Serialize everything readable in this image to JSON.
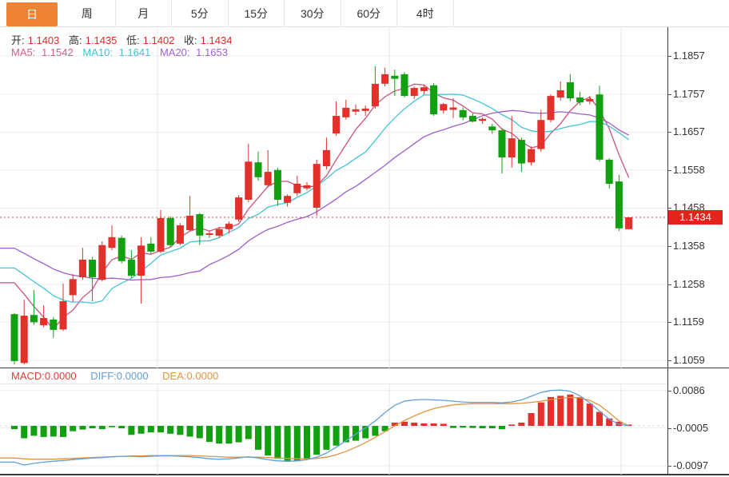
{
  "toolbar": {
    "tabs": [
      {
        "name": "day",
        "label": "日",
        "active": true
      },
      {
        "name": "week",
        "label": "周",
        "active": false
      },
      {
        "name": "month",
        "label": "月",
        "active": false
      },
      {
        "name": "5min",
        "label": "5分",
        "active": false
      },
      {
        "name": "15min",
        "label": "15分",
        "active": false
      },
      {
        "name": "30min",
        "label": "30分",
        "active": false
      },
      {
        "name": "60min",
        "label": "60分",
        "active": false
      },
      {
        "name": "4hour",
        "label": "4时",
        "active": false
      }
    ]
  },
  "ohlc_header": {
    "open_label": "开:",
    "open": "1.1403",
    "high_label": "高:",
    "high": "1.1435",
    "low_label": "低:",
    "low": "1.1402",
    "close_label": "收:",
    "close": "1.1434"
  },
  "ma_header": {
    "ma5_label": "MA5:",
    "ma5": "1.1542",
    "ma10_label": "MA10:",
    "ma10": "1.1641",
    "ma20_label": "MA20:",
    "ma20": "1.1653"
  },
  "macd_header": {
    "macd_label": "MACD:",
    "macd": "0.0000",
    "diff_label": "DIFF:",
    "diff": "0.0000",
    "dea_label": "DEA:",
    "dea": "0.0000"
  },
  "current_price_badge": "1.1434",
  "colors": {
    "tab_active_bg": "#EE8433",
    "up": "#E2302A",
    "down": "#10A010",
    "badge": "#E2241A",
    "ma5": "#CE537D",
    "ma10": "#45C3D6",
    "ma20": "#9D5DCB",
    "diff": "#60A0D8",
    "dea": "#E39440",
    "value_red": "#E02A2A",
    "label_dark": "#333333",
    "grid": "#ededed",
    "vgrid": "#e7e7e7",
    "dotted_price_line": "#CC4030"
  },
  "chart_data": {
    "type": "candlestick",
    "panels": [
      "price",
      "macd"
    ],
    "title": "",
    "y_axis_ticks": [
      1.1857,
      1.1757,
      1.1657,
      1.1558,
      1.1458,
      1.1358,
      1.1258,
      1.1159,
      1.1059
    ],
    "macd_axis_ticks": [
      0.0086,
      -0.0005,
      -0.0097
    ],
    "current_price": 1.1434,
    "ma_periods": [
      5,
      10,
      20
    ],
    "ma_last_values": {
      "ma5": 1.1542,
      "ma10": 1.1641,
      "ma20": 1.1653
    },
    "ohlc_last": {
      "open": 1.1403,
      "high": 1.1435,
      "low": 1.1402,
      "close": 1.1434
    },
    "candles": [
      [
        1.118,
        1.1183,
        1.1048,
        1.1057
      ],
      [
        1.1052,
        1.1218,
        1.1048,
        1.1176
      ],
      [
        1.1178,
        1.1243,
        1.1152,
        1.1159
      ],
      [
        1.1151,
        1.1203,
        1.1146,
        1.117
      ],
      [
        1.1166,
        1.1172,
        1.1118,
        1.1139
      ],
      [
        1.114,
        1.126,
        1.1136,
        1.1214
      ],
      [
        1.123,
        1.1285,
        1.1212,
        1.1272
      ],
      [
        1.1277,
        1.1354,
        1.127,
        1.1323
      ],
      [
        1.1323,
        1.133,
        1.1214,
        1.1277
      ],
      [
        1.127,
        1.1371,
        1.1266,
        1.1361
      ],
      [
        1.1354,
        1.1413,
        1.1348,
        1.1382
      ],
      [
        1.138,
        1.1386,
        1.1313,
        1.1319
      ],
      [
        1.1323,
        1.1348,
        1.1275,
        1.1281
      ],
      [
        1.1281,
        1.1382,
        1.1208,
        1.136
      ],
      [
        1.1365,
        1.1382,
        1.1338,
        1.1344
      ],
      [
        1.1344,
        1.1453,
        1.134,
        1.1432
      ],
      [
        1.1432,
        1.1436,
        1.1356,
        1.1361
      ],
      [
        1.1365,
        1.1419,
        1.1361,
        1.1413
      ],
      [
        1.14,
        1.149,
        1.1396,
        1.1438
      ],
      [
        1.1442,
        1.1446,
        1.1361,
        1.1386
      ],
      [
        1.1388,
        1.1398,
        1.138,
        1.1392
      ],
      [
        1.1386,
        1.1409,
        1.138,
        1.1403
      ],
      [
        1.1403,
        1.1423,
        1.1392,
        1.1417
      ],
      [
        1.1428,
        1.1492,
        1.1422,
        1.1486
      ],
      [
        1.148,
        1.1627,
        1.1474,
        1.158
      ],
      [
        1.1578,
        1.1606,
        1.153,
        1.1539
      ],
      [
        1.1518,
        1.161,
        1.1512,
        1.1553
      ],
      [
        1.1558,
        1.1564,
        1.1464,
        1.148
      ],
      [
        1.1472,
        1.1494,
        1.1462,
        1.149
      ],
      [
        1.1497,
        1.1543,
        1.149,
        1.1522
      ],
      [
        1.151,
        1.1526,
        1.1504,
        1.1518
      ],
      [
        1.1459,
        1.1585,
        1.1438,
        1.1574
      ],
      [
        1.1568,
        1.1643,
        1.156,
        1.161
      ],
      [
        1.1654,
        1.1738,
        1.1648,
        1.17
      ],
      [
        1.1696,
        1.1742,
        1.169,
        1.1721
      ],
      [
        1.1711,
        1.173,
        1.1702,
        1.1717
      ],
      [
        1.1713,
        1.1727,
        1.17,
        1.1719
      ],
      [
        1.1725,
        1.183,
        1.1719,
        1.1784
      ],
      [
        1.1784,
        1.1826,
        1.1777,
        1.1809
      ],
      [
        1.1805,
        1.1821,
        1.1752,
        1.1797
      ],
      [
        1.1809,
        1.1815,
        1.1748,
        1.1752
      ],
      [
        1.1752,
        1.1777,
        1.1744,
        1.1773
      ],
      [
        1.1765,
        1.178,
        1.1756,
        1.1775
      ],
      [
        1.178,
        1.1786,
        1.17,
        1.1704
      ],
      [
        1.1714,
        1.1734,
        1.1706,
        1.1731
      ],
      [
        1.1716,
        1.1746,
        1.1694,
        1.1722
      ],
      [
        1.1715,
        1.1722,
        1.1688,
        1.1696
      ],
      [
        1.17,
        1.1706,
        1.1683,
        1.1685
      ],
      [
        1.1687,
        1.1696,
        1.1679,
        1.1692
      ],
      [
        1.1672,
        1.1679,
        1.1653,
        1.1662
      ],
      [
        1.1662,
        1.1668,
        1.1549,
        1.1591
      ],
      [
        1.1591,
        1.17,
        1.1564,
        1.1641
      ],
      [
        1.1637,
        1.1643,
        1.1553,
        1.1575
      ],
      [
        1.1578,
        1.162,
        1.157,
        1.1613
      ],
      [
        1.1613,
        1.1715,
        1.1606,
        1.1689
      ],
      [
        1.1689,
        1.1756,
        1.1683,
        1.1752
      ],
      [
        1.1748,
        1.179,
        1.174,
        1.1767
      ],
      [
        1.1788,
        1.1809,
        1.1738,
        1.1746
      ],
      [
        1.1748,
        1.1763,
        1.1728,
        1.1735
      ],
      [
        1.1738,
        1.1752,
        1.173,
        1.1744
      ],
      [
        1.1756,
        1.1779,
        1.158,
        1.1585
      ],
      [
        1.1585,
        1.1589,
        1.1509,
        1.1522
      ],
      [
        1.1528,
        1.1545,
        1.1398,
        1.1405
      ],
      [
        1.1403,
        1.1435,
        1.1402,
        1.1434
      ]
    ],
    "ma_seed_closes": [
      1.145,
      1.144,
      1.143,
      1.142,
      1.141,
      1.14,
      1.139,
      1.138,
      1.137,
      1.136,
      1.135,
      1.1345,
      1.134,
      1.1335,
      1.133,
      1.1325,
      1.132,
      1.131,
      1.13
    ],
    "macd": {
      "hist": [
        -0.0008,
        -0.003,
        -0.0024,
        -0.0027,
        -0.0026,
        -0.0027,
        -0.0013,
        -0.0009,
        -0.0006,
        -0.0008,
        -0.0003,
        -0.0006,
        -0.0022,
        -0.0019,
        -0.0016,
        -0.0016,
        -0.0019,
        -0.0022,
        -0.0026,
        -0.003,
        -0.0039,
        -0.0043,
        -0.0043,
        -0.004,
        -0.0032,
        -0.0058,
        -0.0072,
        -0.008,
        -0.0085,
        -0.0085,
        -0.008,
        -0.007,
        -0.0058,
        -0.0048,
        -0.004,
        -0.0036,
        -0.003,
        -0.0024,
        -0.0013,
        0.0008,
        0.001,
        0.0008,
        0.0006,
        0.0006,
        0.0005,
        -0.0005,
        -0.0004,
        -0.0005,
        -0.0006,
        -0.0006,
        -0.0008,
        0.0002,
        0.0008,
        0.0031,
        0.0057,
        0.007,
        0.0073,
        0.0076,
        0.007,
        0.0054,
        0.0034,
        0.0018,
        0.001,
        0.0001
      ],
      "diff": [
        -0.0088,
        -0.0095,
        -0.0091,
        -0.0088,
        -0.0086,
        -0.0084,
        -0.0082,
        -0.008,
        -0.0078,
        -0.0077,
        -0.0075,
        -0.0074,
        -0.0074,
        -0.0075,
        -0.0074,
        -0.0073,
        -0.0073,
        -0.0074,
        -0.0075,
        -0.0077,
        -0.008,
        -0.0081,
        -0.008,
        -0.0078,
        -0.0075,
        -0.0078,
        -0.0082,
        -0.0085,
        -0.0086,
        -0.0085,
        -0.0082,
        -0.0076,
        -0.0066,
        -0.0052,
        -0.0036,
        -0.002,
        -0.0005,
        0.0012,
        0.0032,
        0.005,
        0.006,
        0.0063,
        0.0064,
        0.0063,
        0.0062,
        0.006,
        0.0058,
        0.0057,
        0.0057,
        0.0057,
        0.0056,
        0.0058,
        0.0063,
        0.0072,
        0.0081,
        0.0086,
        0.0087,
        0.0084,
        0.0073,
        0.0056,
        0.0036,
        0.0016,
        0.0004,
        0.0
      ],
      "dea": [
        -0.0078,
        -0.008,
        -0.0081,
        -0.0081,
        -0.0081,
        -0.008,
        -0.0079,
        -0.0078,
        -0.0077,
        -0.0076,
        -0.0075,
        -0.0074,
        -0.0073,
        -0.0073,
        -0.0072,
        -0.0072,
        -0.0072,
        -0.0072,
        -0.0072,
        -0.0073,
        -0.0074,
        -0.0075,
        -0.0076,
        -0.0076,
        -0.0076,
        -0.0076,
        -0.0077,
        -0.0078,
        -0.0079,
        -0.008,
        -0.008,
        -0.0079,
        -0.0076,
        -0.007,
        -0.0062,
        -0.0052,
        -0.0041,
        -0.0028,
        -0.0014,
        0.0,
        0.0013,
        0.0024,
        0.0034,
        0.0042,
        0.0047,
        0.0051,
        0.0053,
        0.0054,
        0.0054,
        0.0054,
        0.0054,
        0.0054,
        0.0055,
        0.0057,
        0.006,
        0.0064,
        0.0067,
        0.0069,
        0.0068,
        0.0062,
        0.005,
        0.0032,
        0.0012,
        0.0
      ]
    }
  }
}
